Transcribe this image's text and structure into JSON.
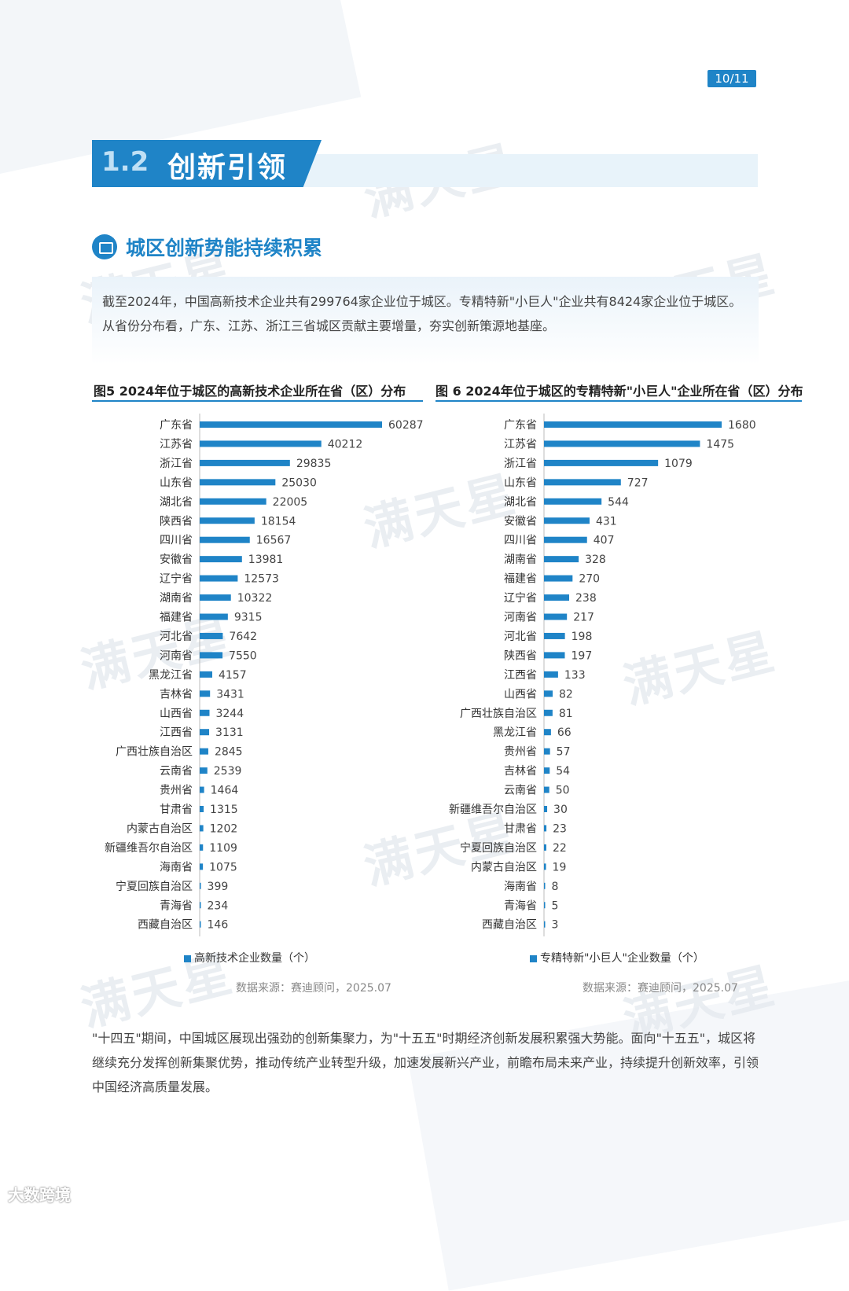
{
  "page_number": "10/11",
  "section": {
    "number": "1.2",
    "title": "创新引领"
  },
  "subsection": {
    "icon": "folder-icon",
    "title": "城区创新势能持续积累"
  },
  "intro": "截至2024年，中国高新技术企业共有299764家企业位于城区。专精特新\"小巨人\"企业共有8424家企业位于城区。从省份分布看，广东、江苏、浙江三省城区贡献主要增量，夯实创新策源地基座。",
  "watermark": "满天星",
  "colors": {
    "accent": "#1f84c7"
  },
  "chart_data": [
    {
      "type": "bar",
      "orientation": "horizontal",
      "title": "图5  2024年位于城区的高新技术企业所在省（区）分布",
      "categories": [
        "广东省",
        "江苏省",
        "浙江省",
        "山东省",
        "湖北省",
        "陕西省",
        "四川省",
        "安徽省",
        "辽宁省",
        "湖南省",
        "福建省",
        "河北省",
        "河南省",
        "黑龙江省",
        "吉林省",
        "山西省",
        "江西省",
        "广西壮族自治区",
        "云南省",
        "贵州省",
        "甘肃省",
        "内蒙古自治区",
        "新疆维吾尔自治区",
        "海南省",
        "宁夏回族自治区",
        "青海省",
        "西藏自治区"
      ],
      "series": [
        {
          "name": "高新技术企业数量（个）",
          "values": [
            60287,
            40212,
            29835,
            25030,
            22005,
            18154,
            16567,
            13981,
            12573,
            10322,
            9315,
            7642,
            7550,
            4157,
            3431,
            3244,
            3131,
            2845,
            2539,
            1464,
            1315,
            1202,
            1109,
            1075,
            399,
            234,
            146
          ]
        }
      ],
      "legend": "bottom",
      "source": "数据来源：赛迪顾问，2025.07"
    },
    {
      "type": "bar",
      "orientation": "horizontal",
      "title": "图 6  2024年位于城区的专精特新\"小巨人\"企业所在省（区）分布",
      "categories": [
        "广东省",
        "江苏省",
        "浙江省",
        "山东省",
        "湖北省",
        "安徽省",
        "四川省",
        "湖南省",
        "福建省",
        "辽宁省",
        "河南省",
        "河北省",
        "陕西省",
        "江西省",
        "山西省",
        "广西壮族自治区",
        "黑龙江省",
        "贵州省",
        "吉林省",
        "云南省",
        "新疆维吾尔自治区",
        "甘肃省",
        "宁夏回族自治区",
        "内蒙古自治区",
        "海南省",
        "青海省",
        "西藏自治区"
      ],
      "series": [
        {
          "name": "专精特新\"小巨人\"企业数量（个）",
          "values": [
            1680,
            1475,
            1079,
            727,
            544,
            431,
            407,
            328,
            270,
            238,
            217,
            198,
            197,
            133,
            82,
            81,
            66,
            57,
            54,
            50,
            30,
            23,
            22,
            19,
            8,
            5,
            3
          ]
        }
      ],
      "legend": "bottom",
      "source": "数据来源：赛迪顾问，2025.07"
    }
  ],
  "conclusion": "\"十四五\"期间，中国城区展现出强劲的创新集聚力，为\"十五五\"时期经济创新发展积累强大势能。面向\"十五五\"，城区将继续充分发挥创新集聚优势，推动传统产业转型升级，加速发展新兴产业，前瞻布局未来产业，持续提升创新效率，引领中国经济高质量发展。",
  "footer": "大数跨境"
}
